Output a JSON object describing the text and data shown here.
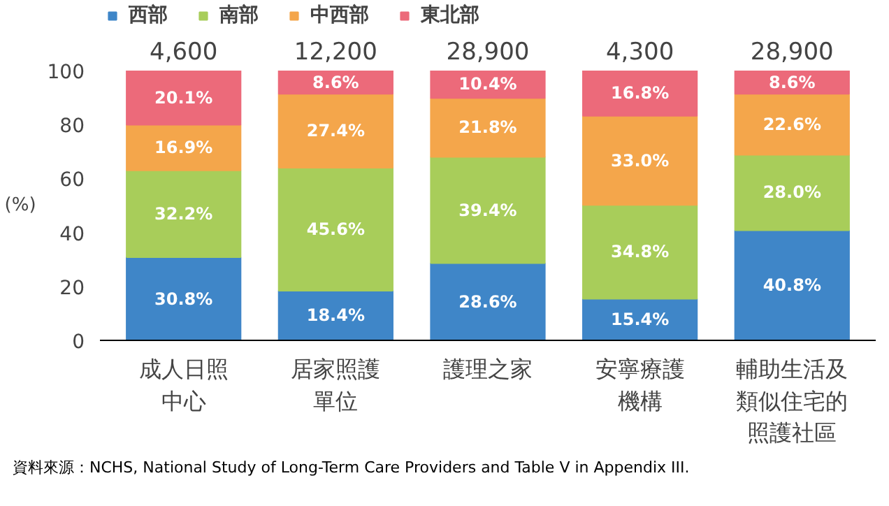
{
  "chart_data": {
    "type": "bar",
    "stacked": true,
    "categories": [
      "成人日照中心",
      "居家照護單位",
      "護理之家",
      "安寧療護機構",
      "輔助生活及類似住宅的照護社區"
    ],
    "series": [
      {
        "name": "西部",
        "color": "#3f86c8",
        "values": [
          30.8,
          18.4,
          28.6,
          15.4,
          40.8
        ],
        "value_labels": [
          "30.8%",
          "18.4%",
          "28.6%",
          "15.4%",
          "40.8%"
        ]
      },
      {
        "name": "南部",
        "color": "#a8cd5a",
        "values": [
          32.2,
          45.6,
          39.4,
          34.8,
          28.0
        ],
        "value_labels": [
          "32.2%",
          "45.6%",
          "39.4%",
          "34.8%",
          "28.0%"
        ]
      },
      {
        "name": "中西部",
        "color": "#f4a64b",
        "values": [
          16.9,
          27.4,
          21.8,
          33.0,
          22.6
        ],
        "value_labels": [
          "16.9%",
          "27.4%",
          "21.8%",
          "33.0%",
          "22.6%"
        ]
      },
      {
        "name": "東北部",
        "color": "#ec6a7a",
        "values": [
          20.1,
          8.6,
          10.4,
          16.8,
          8.6
        ],
        "value_labels": [
          "20.1%",
          "8.6%",
          "10.4%",
          "16.8%",
          "8.6%"
        ]
      }
    ],
    "ylim": [
      0,
      100
    ],
    "yticks": [
      0,
      20,
      40,
      60,
      80,
      100
    ],
    "ylabel": "(%)",
    "grid": false,
    "legend": "top left",
    "annotations": [
      "4,600",
      "12,200",
      "28,900",
      "4,300",
      "28,900",
      "資料來源：NCHS, National Study of Long-Term Care Providers and Table V in Appendix III."
    ]
  }
}
